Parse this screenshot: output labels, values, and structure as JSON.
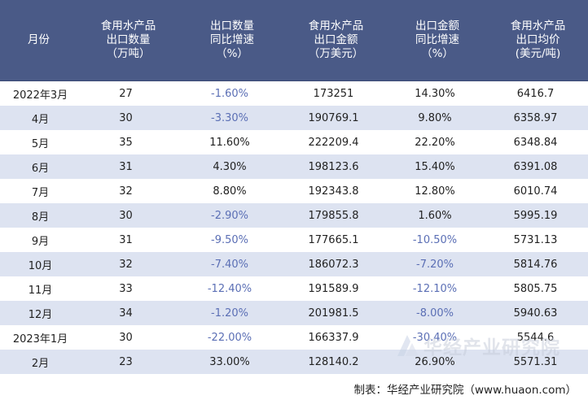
{
  "table": {
    "headers": [
      [
        "月份"
      ],
      [
        "食用水产品",
        "出口数量",
        "（万吨）"
      ],
      [
        "出口数量",
        "同比增速",
        "（%）"
      ],
      [
        "食用水产品",
        "出口金额",
        "（万美元）"
      ],
      [
        "出口金额",
        "同比增速",
        "（%）"
      ],
      [
        "食用水产品",
        "出口均价",
        "(美元/吨)"
      ]
    ],
    "rows": [
      {
        "month": "2022年3月",
        "qty": "27",
        "qty_yoy": "-1.60%",
        "amount": "173251",
        "amount_yoy": "14.30%",
        "price": "6416.7"
      },
      {
        "month": "4月",
        "qty": "30",
        "qty_yoy": "-3.30%",
        "amount": "190769.1",
        "amount_yoy": "9.80%",
        "price": "6358.97"
      },
      {
        "month": "5月",
        "qty": "35",
        "qty_yoy": "11.60%",
        "amount": "222209.4",
        "amount_yoy": "22.20%",
        "price": "6348.84"
      },
      {
        "month": "6月",
        "qty": "31",
        "qty_yoy": "4.30%",
        "amount": "198123.6",
        "amount_yoy": "15.40%",
        "price": "6391.08"
      },
      {
        "month": "7月",
        "qty": "32",
        "qty_yoy": "8.80%",
        "amount": "192343.8",
        "amount_yoy": "12.80%",
        "price": "6010.74"
      },
      {
        "month": "8月",
        "qty": "30",
        "qty_yoy": "-2.90%",
        "amount": "179855.8",
        "amount_yoy": "1.60%",
        "price": "5995.19"
      },
      {
        "month": "9月",
        "qty": "31",
        "qty_yoy": "-9.50%",
        "amount": "177665.1",
        "amount_yoy": "-10.50%",
        "price": "5731.13"
      },
      {
        "month": "10月",
        "qty": "32",
        "qty_yoy": "-7.40%",
        "amount": "186072.3",
        "amount_yoy": "-7.20%",
        "price": "5814.76"
      },
      {
        "month": "11月",
        "qty": "33",
        "qty_yoy": "-12.40%",
        "amount": "191589.9",
        "amount_yoy": "-12.10%",
        "price": "5805.75"
      },
      {
        "month": "12月",
        "qty": "34",
        "qty_yoy": "-1.20%",
        "amount": "201981.5",
        "amount_yoy": "-8.00%",
        "price": "5940.63"
      },
      {
        "month": "2023年1月",
        "qty": "30",
        "qty_yoy": "-22.00%",
        "amount": "166337.9",
        "amount_yoy": "-30.40%",
        "price": "5544.6"
      },
      {
        "month": "2月",
        "qty": "23",
        "qty_yoy": "33.00%",
        "amount": "128140.2",
        "amount_yoy": "26.90%",
        "price": "5571.31"
      }
    ]
  },
  "footer": {
    "source": "制表：华经产业研究院（www.huaon.com）"
  },
  "watermark": {
    "text": "华经产业研究院"
  },
  "colors": {
    "header_bg": "#4a5a87",
    "stripe": "#dde3f1",
    "negative_text": "#5b6fb5"
  }
}
